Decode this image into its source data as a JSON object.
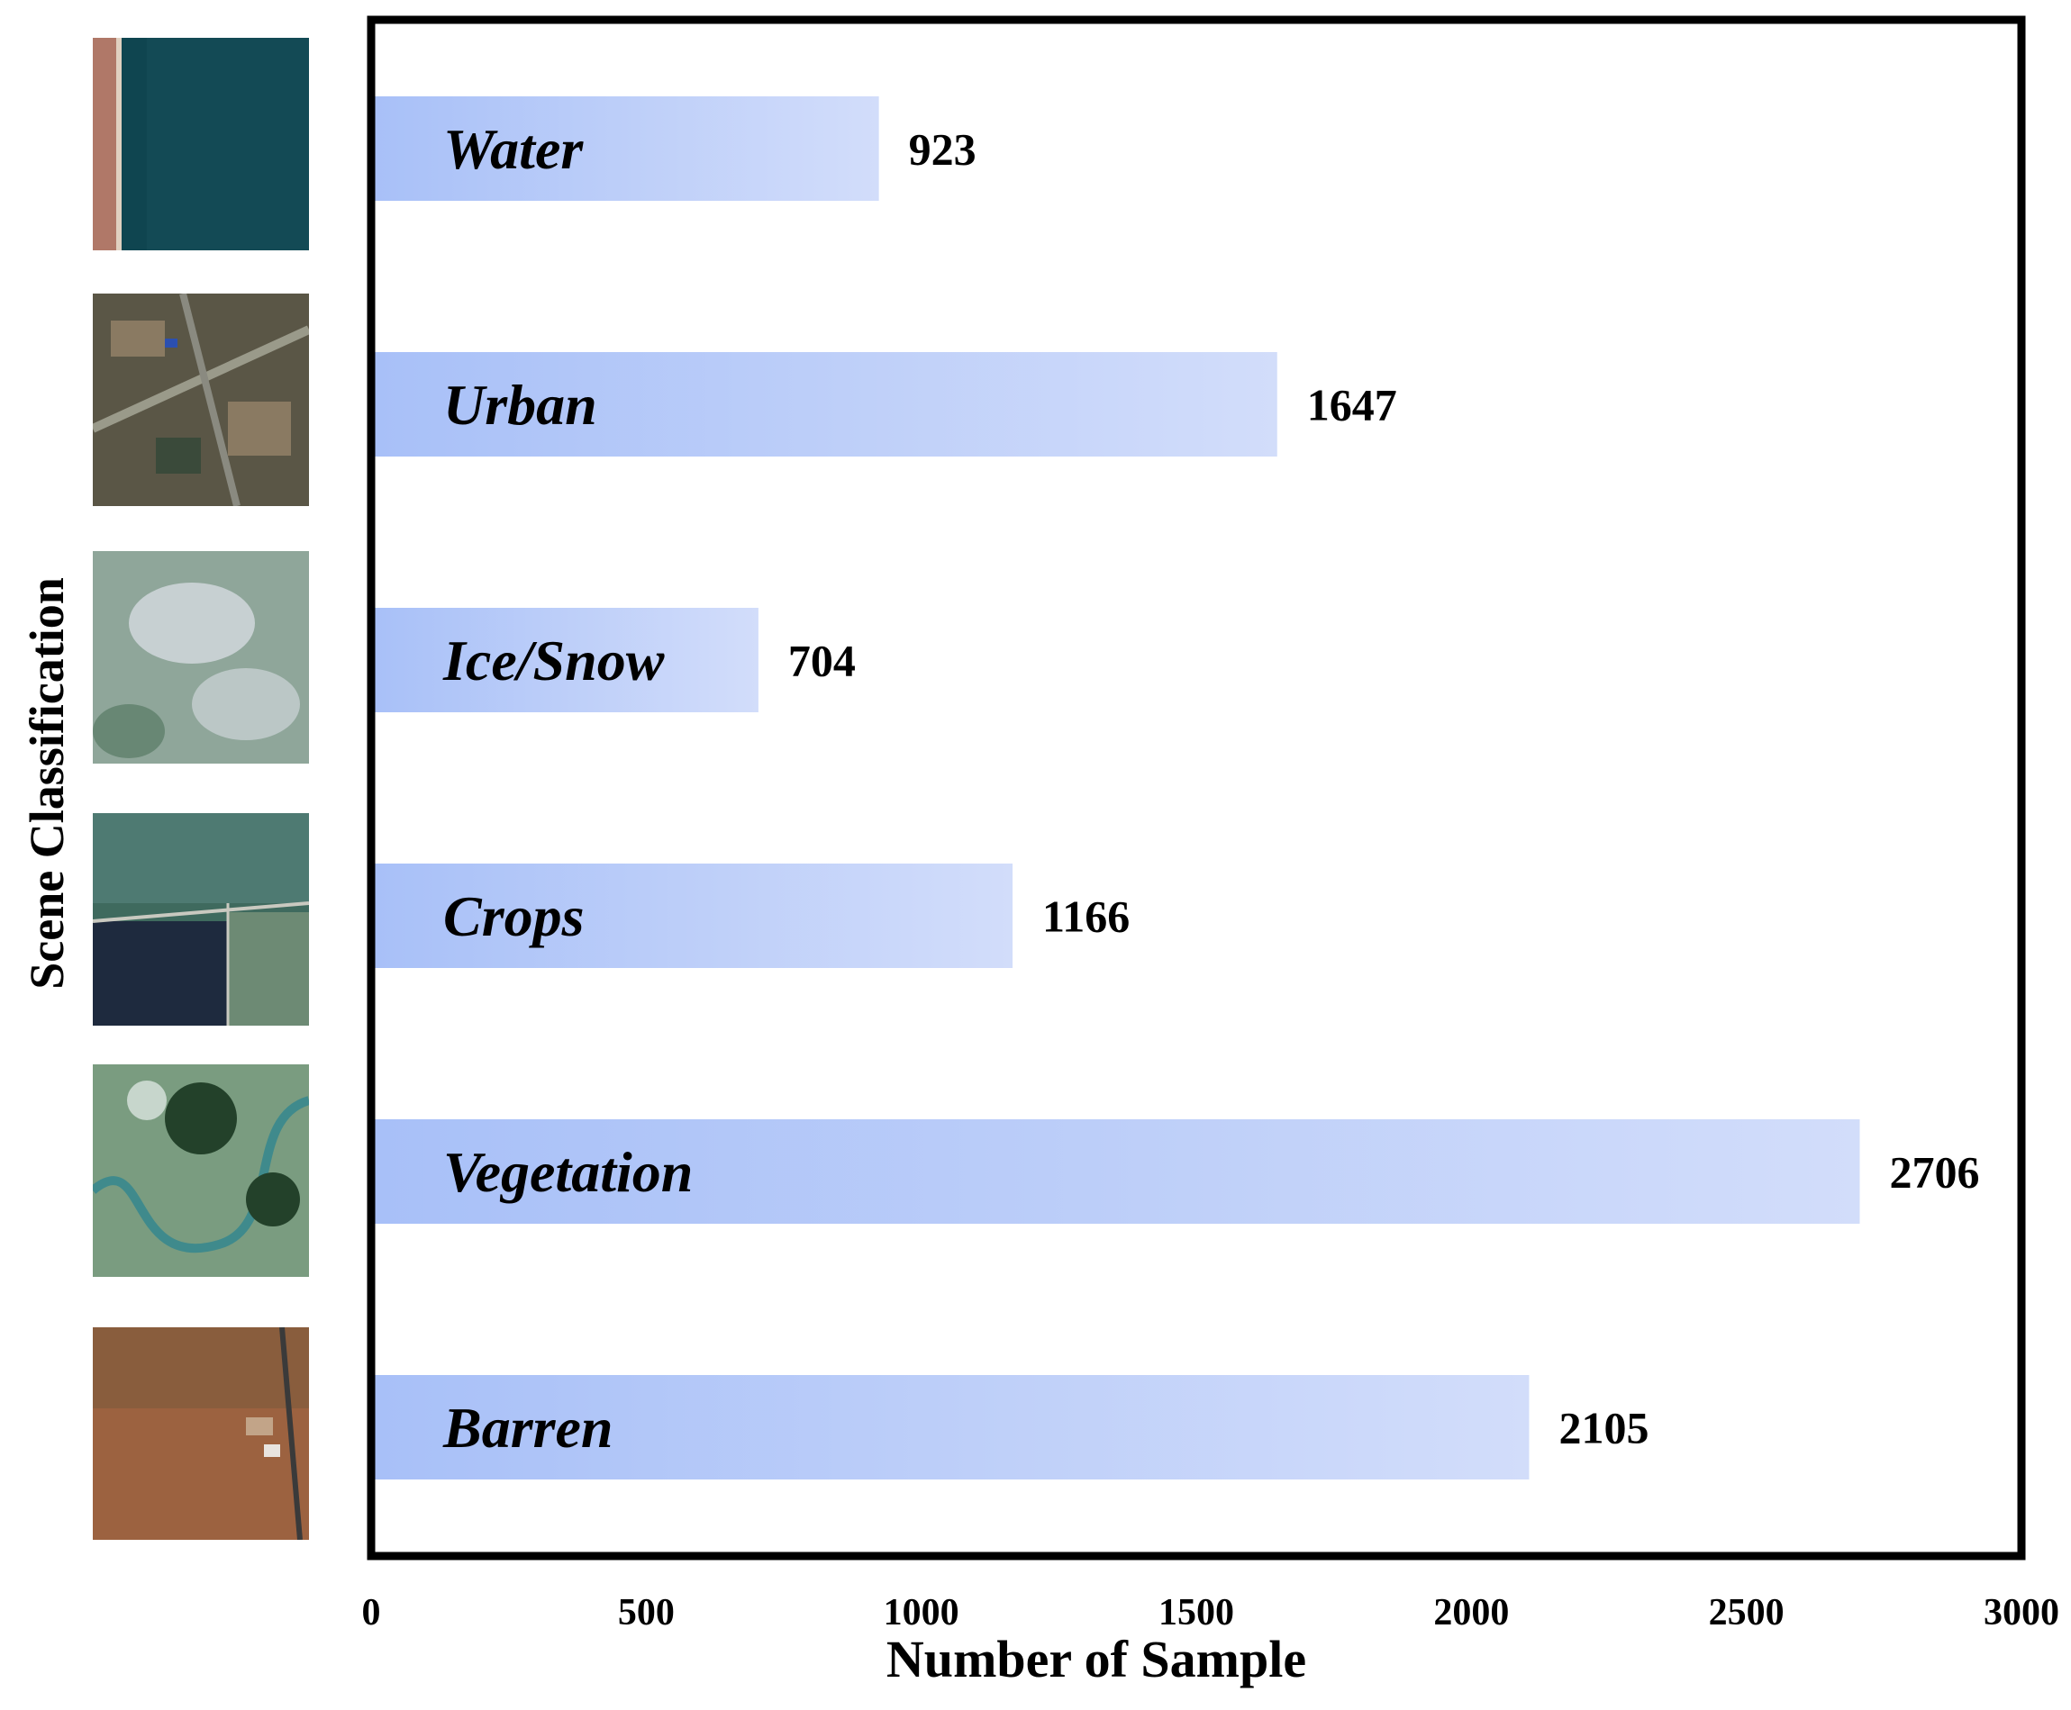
{
  "chart_data": {
    "type": "bar",
    "orientation": "horizontal",
    "categories": [
      "Water",
      "Urban",
      "Ice/Snow",
      "Crops",
      "Vegetation",
      "Barren"
    ],
    "values": [
      923,
      1647,
      704,
      1166,
      2706,
      2105
    ],
    "xlabel": "Number of Sample",
    "ylabel": "Scene Classification",
    "xlim": [
      0,
      3000
    ],
    "xticks": [
      0,
      500,
      1000,
      1500,
      2000,
      2500,
      3000
    ],
    "grid": false,
    "bar_color_start": "#a8c0f8",
    "bar_color_end": "#d2ddfa"
  },
  "thumbnails": [
    {
      "scene": "Water",
      "colors": [
        "#0f4550",
        "#174f59",
        "#b07868"
      ]
    },
    {
      "scene": "Urban",
      "colors": [
        "#5a5646",
        "#8a7a62",
        "#3a4a3a"
      ]
    },
    {
      "scene": "Ice/Snow",
      "colors": [
        "#8fa69a",
        "#cdd5d8",
        "#5e7f6a"
      ]
    },
    {
      "scene": "Crops",
      "colors": [
        "#3f6a5e",
        "#1e2a3e",
        "#6d8a74"
      ]
    },
    {
      "scene": "Vegetation",
      "colors": [
        "#7a9c80",
        "#23412a",
        "#3f8a8c"
      ]
    },
    {
      "scene": "Barren",
      "colors": [
        "#9c6240",
        "#7d5a3c",
        "#c2a488"
      ]
    }
  ]
}
